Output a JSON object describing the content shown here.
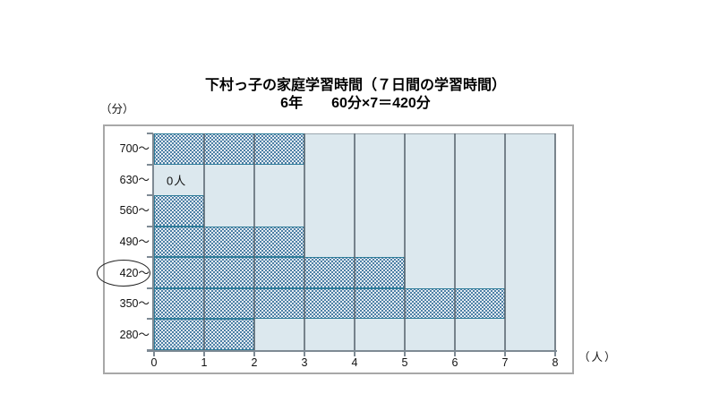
{
  "chart_data": {
    "type": "bar",
    "orientation": "horizontal",
    "title": "下村っ子の家庭学習時間（７日間の学習時間）",
    "subtitle": "6年　　60分×7＝420分",
    "y_unit_label": "（分）",
    "x_unit_label": "（人）",
    "categories": [
      "700～",
      "630～",
      "560～",
      "490～",
      "420～",
      "350～",
      "280～"
    ],
    "values": [
      3,
      0,
      1,
      3,
      5,
      7,
      2
    ],
    "xlabel": "（人）",
    "ylabel": "（分）",
    "xlim": [
      0,
      8
    ],
    "xticks": [
      0,
      1,
      2,
      3,
      4,
      5,
      6,
      7,
      8
    ],
    "grid": "vertical-only",
    "legend": "none",
    "zero_annotation": {
      "category": "630～",
      "text": "0人"
    },
    "circled_category": "420～",
    "colors": {
      "bar_fill": "#4d80a6",
      "bar_dot": "#ffffff",
      "bar_border": "#2e7c99",
      "plot_background": "#dce8ee",
      "gridline": "#5c6872",
      "axis": "#7e8a94",
      "chart_border": "#a8a8a8",
      "text": "#000000"
    }
  }
}
